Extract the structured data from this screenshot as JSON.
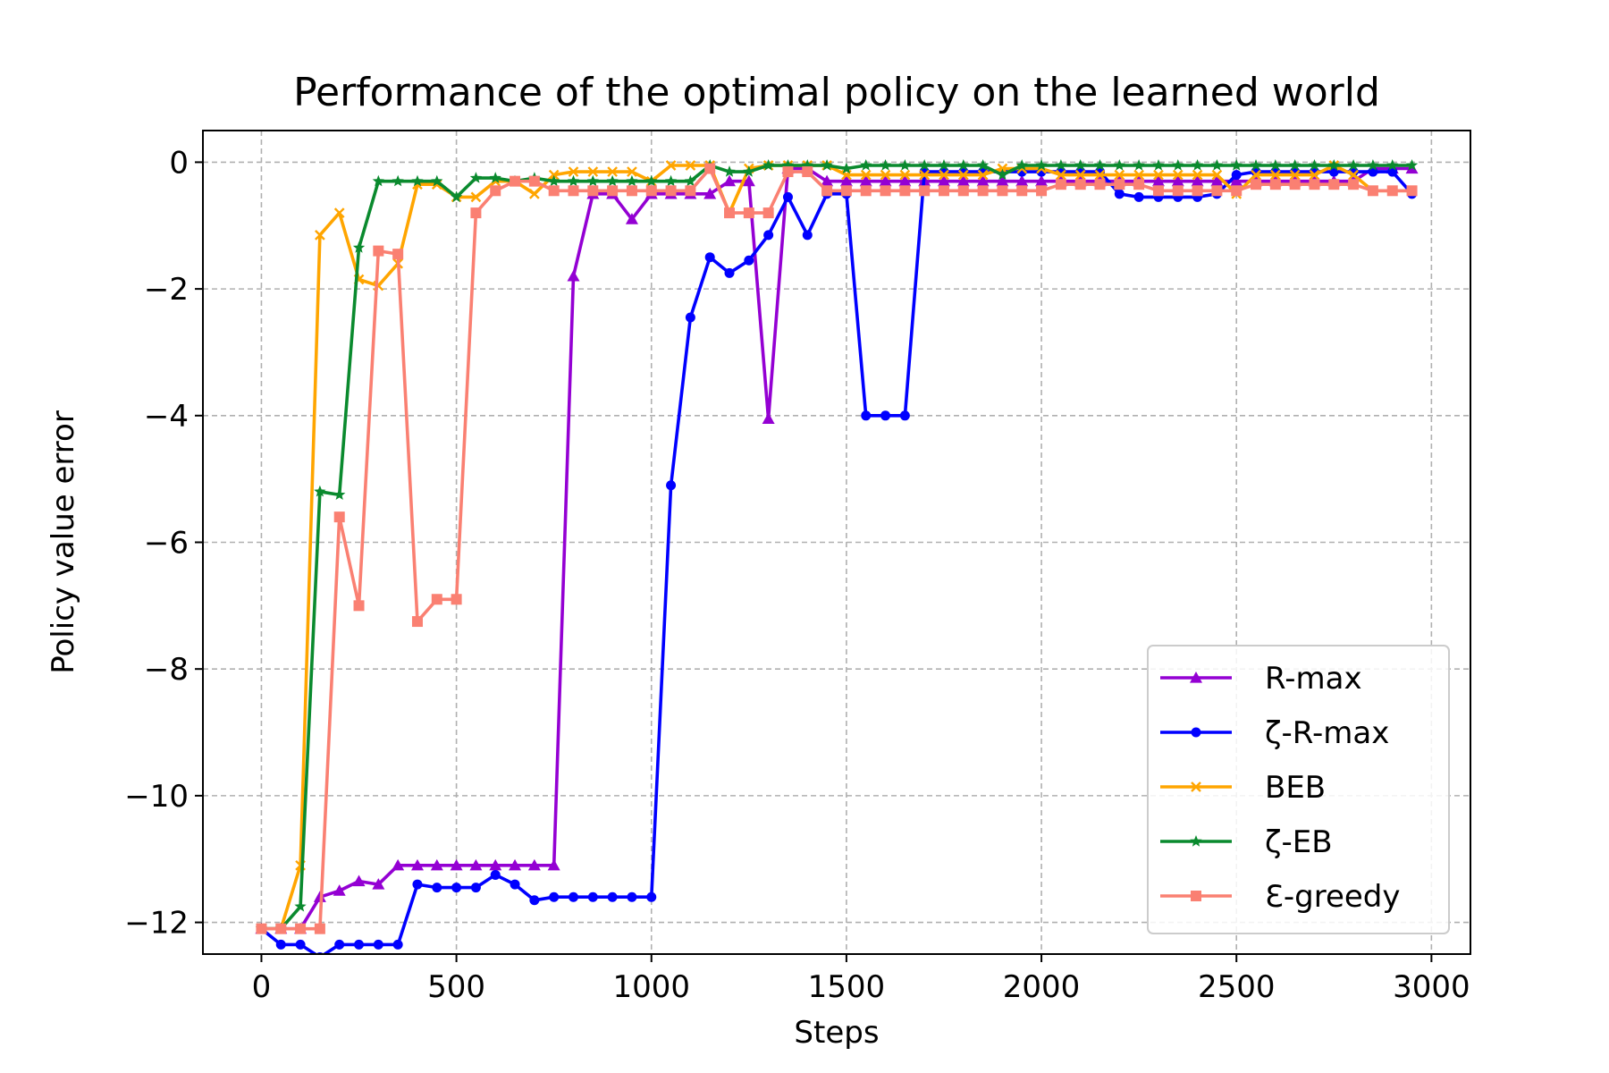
{
  "chart_data": {
    "type": "line",
    "title": "Performance of the optimal policy on the learned world",
    "xlabel": "Steps",
    "ylabel": "Policy value error",
    "xlim": [
      -150,
      3100
    ],
    "ylim": [
      -12.5,
      0.5
    ],
    "xticks": [
      0,
      500,
      1000,
      1500,
      2000,
      2500,
      3000
    ],
    "xtick_labels": [
      "0",
      "500",
      "1000",
      "1500",
      "2000",
      "2500",
      "3000"
    ],
    "yticks": [
      0,
      -2,
      -4,
      -6,
      -8,
      -10,
      -12
    ],
    "ytick_labels": [
      "0",
      "−2",
      "−4",
      "−6",
      "−8",
      "−10",
      "−12"
    ],
    "grid": true,
    "legend_position": "lower-right",
    "x": [
      0,
      50,
      100,
      150,
      200,
      250,
      300,
      350,
      400,
      450,
      500,
      550,
      600,
      650,
      700,
      750,
      800,
      850,
      900,
      950,
      1000,
      1050,
      1100,
      1150,
      1200,
      1250,
      1300,
      1350,
      1400,
      1450,
      1500,
      1550,
      1600,
      1650,
      1700,
      1750,
      1800,
      1850,
      1900,
      1950,
      2000,
      2050,
      2100,
      2150,
      2200,
      2250,
      2300,
      2350,
      2400,
      2450,
      2500,
      2550,
      2600,
      2650,
      2700,
      2750,
      2800,
      2850,
      2900,
      2950
    ],
    "series": [
      {
        "name": "R-max",
        "color": "#9400D3",
        "marker": "triangle",
        "values": [
          -12.1,
          -12.1,
          -12.1,
          -11.6,
          -11.5,
          -11.35,
          -11.4,
          -11.1,
          -11.1,
          -11.1,
          -11.1,
          -11.1,
          -11.1,
          -11.1,
          -11.1,
          -11.1,
          -1.8,
          -0.5,
          -0.5,
          -0.9,
          -0.5,
          -0.5,
          -0.5,
          -0.5,
          -0.3,
          -0.3,
          -4.05,
          -0.1,
          -0.1,
          -0.3,
          -0.3,
          -0.3,
          -0.3,
          -0.3,
          -0.3,
          -0.3,
          -0.3,
          -0.3,
          -0.3,
          -0.3,
          -0.3,
          -0.3,
          -0.3,
          -0.3,
          -0.3,
          -0.3,
          -0.3,
          -0.3,
          -0.3,
          -0.3,
          -0.3,
          -0.3,
          -0.3,
          -0.3,
          -0.3,
          -0.3,
          -0.3,
          -0.1,
          -0.1,
          -0.1
        ]
      },
      {
        "name": "ζ-R-max",
        "color": "#0000FF",
        "marker": "circle",
        "values": [
          -12.1,
          -12.35,
          -12.35,
          -12.55,
          -12.35,
          -12.35,
          -12.35,
          -12.35,
          -11.4,
          -11.45,
          -11.45,
          -11.45,
          -11.25,
          -11.4,
          -11.65,
          -11.6,
          -11.6,
          -11.6,
          -11.6,
          -11.6,
          -11.6,
          -5.1,
          -2.45,
          -1.5,
          -1.75,
          -1.55,
          -1.15,
          -0.55,
          -1.15,
          -0.5,
          -0.5,
          -4.0,
          -4.0,
          -4.0,
          -0.15,
          -0.15,
          -0.15,
          -0.15,
          -0.15,
          -0.15,
          -0.15,
          -0.15,
          -0.15,
          -0.15,
          -0.5,
          -0.55,
          -0.55,
          -0.55,
          -0.55,
          -0.5,
          -0.2,
          -0.15,
          -0.15,
          -0.15,
          -0.15,
          -0.15,
          -0.15,
          -0.15,
          -0.15,
          -0.5
        ]
      },
      {
        "name": "BEB",
        "color": "#FFA500",
        "marker": "x",
        "values": [
          -12.1,
          -12.1,
          -11.1,
          -1.15,
          -0.8,
          -1.85,
          -1.95,
          -1.6,
          -0.35,
          -0.35,
          -0.55,
          -0.55,
          -0.3,
          -0.3,
          -0.5,
          -0.2,
          -0.15,
          -0.15,
          -0.15,
          -0.15,
          -0.3,
          -0.05,
          -0.05,
          -0.05,
          -0.8,
          -0.1,
          -0.05,
          -0.05,
          -0.05,
          -0.05,
          -0.2,
          -0.2,
          -0.2,
          -0.2,
          -0.2,
          -0.2,
          -0.2,
          -0.2,
          -0.1,
          -0.1,
          -0.1,
          -0.2,
          -0.2,
          -0.2,
          -0.2,
          -0.2,
          -0.2,
          -0.2,
          -0.2,
          -0.2,
          -0.5,
          -0.2,
          -0.2,
          -0.2,
          -0.2,
          -0.05,
          -0.2,
          -0.45,
          -0.45,
          -0.45
        ]
      },
      {
        "name": "ζ-EB",
        "color": "#0A8A2E",
        "marker": "star",
        "values": [
          -12.1,
          -12.1,
          -11.75,
          -5.2,
          -5.25,
          -1.35,
          -0.3,
          -0.3,
          -0.3,
          -0.3,
          -0.55,
          -0.25,
          -0.25,
          -0.3,
          -0.25,
          -0.3,
          -0.3,
          -0.3,
          -0.3,
          -0.3,
          -0.3,
          -0.3,
          -0.3,
          -0.05,
          -0.15,
          -0.15,
          -0.05,
          -0.05,
          -0.05,
          -0.05,
          -0.1,
          -0.05,
          -0.05,
          -0.05,
          -0.05,
          -0.05,
          -0.05,
          -0.05,
          -0.2,
          -0.05,
          -0.05,
          -0.05,
          -0.05,
          -0.05,
          -0.05,
          -0.05,
          -0.05,
          -0.05,
          -0.05,
          -0.05,
          -0.05,
          -0.05,
          -0.05,
          -0.05,
          -0.05,
          -0.05,
          -0.05,
          -0.05,
          -0.05,
          -0.05
        ]
      },
      {
        "name": "Ɛ-greedy",
        "color": "#FA8072",
        "marker": "square",
        "values": [
          -12.1,
          -12.1,
          -12.1,
          -12.1,
          -5.6,
          -7.0,
          -1.4,
          -1.45,
          -7.25,
          -6.9,
          -6.9,
          -0.8,
          -0.45,
          -0.3,
          -0.3,
          -0.45,
          -0.45,
          -0.45,
          -0.45,
          -0.45,
          -0.45,
          -0.45,
          -0.45,
          -0.1,
          -0.8,
          -0.8,
          -0.8,
          -0.15,
          -0.15,
          -0.45,
          -0.45,
          -0.45,
          -0.45,
          -0.45,
          -0.45,
          -0.45,
          -0.45,
          -0.45,
          -0.45,
          -0.45,
          -0.45,
          -0.35,
          -0.35,
          -0.35,
          -0.35,
          -0.35,
          -0.45,
          -0.45,
          -0.45,
          -0.45,
          -0.45,
          -0.35,
          -0.35,
          -0.35,
          -0.35,
          -0.35,
          -0.35,
          -0.45,
          -0.45,
          -0.45
        ]
      }
    ]
  }
}
